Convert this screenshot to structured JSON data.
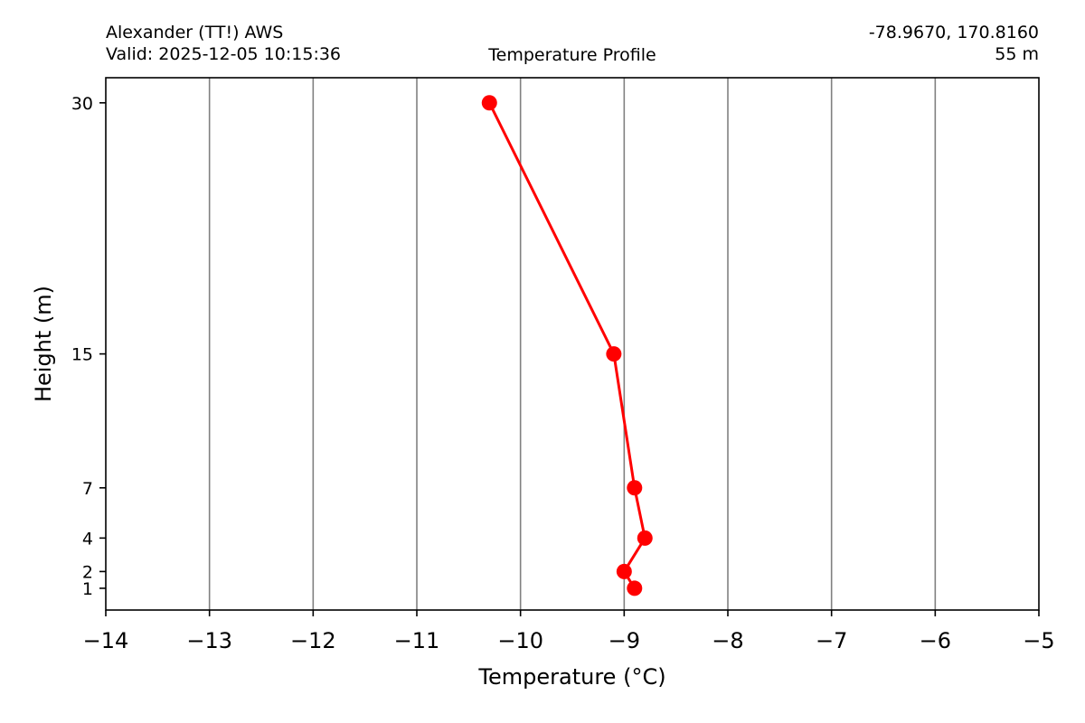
{
  "header": {
    "station": "Alexander (TT!) AWS",
    "valid": "Valid: 2025-12-05 10:15:36",
    "title": "Temperature Profile",
    "coords": "-78.9670, 170.8160",
    "elevation": "55 m"
  },
  "chart_data": {
    "type": "line",
    "title": "Temperature Profile",
    "xlabel": "Temperature (°C)",
    "ylabel": "Height (m)",
    "xlim": [
      -14,
      -5
    ],
    "ylim": [
      -0.3,
      31.5
    ],
    "x_ticks": [
      -14,
      -13,
      -12,
      -11,
      -10,
      -9,
      -8,
      -7,
      -6,
      -5
    ],
    "y_ticks": [
      1,
      2,
      4,
      7,
      15,
      30
    ],
    "grid": "vertical",
    "series": [
      {
        "color": "#ff0000",
        "marker": "circle",
        "points": [
          {
            "x": -10.3,
            "y": 30
          },
          {
            "x": -9.1,
            "y": 15
          },
          {
            "x": -8.9,
            "y": 7
          },
          {
            "x": -8.8,
            "y": 4
          },
          {
            "x": -9.0,
            "y": 2
          },
          {
            "x": -8.9,
            "y": 1
          }
        ]
      }
    ]
  }
}
